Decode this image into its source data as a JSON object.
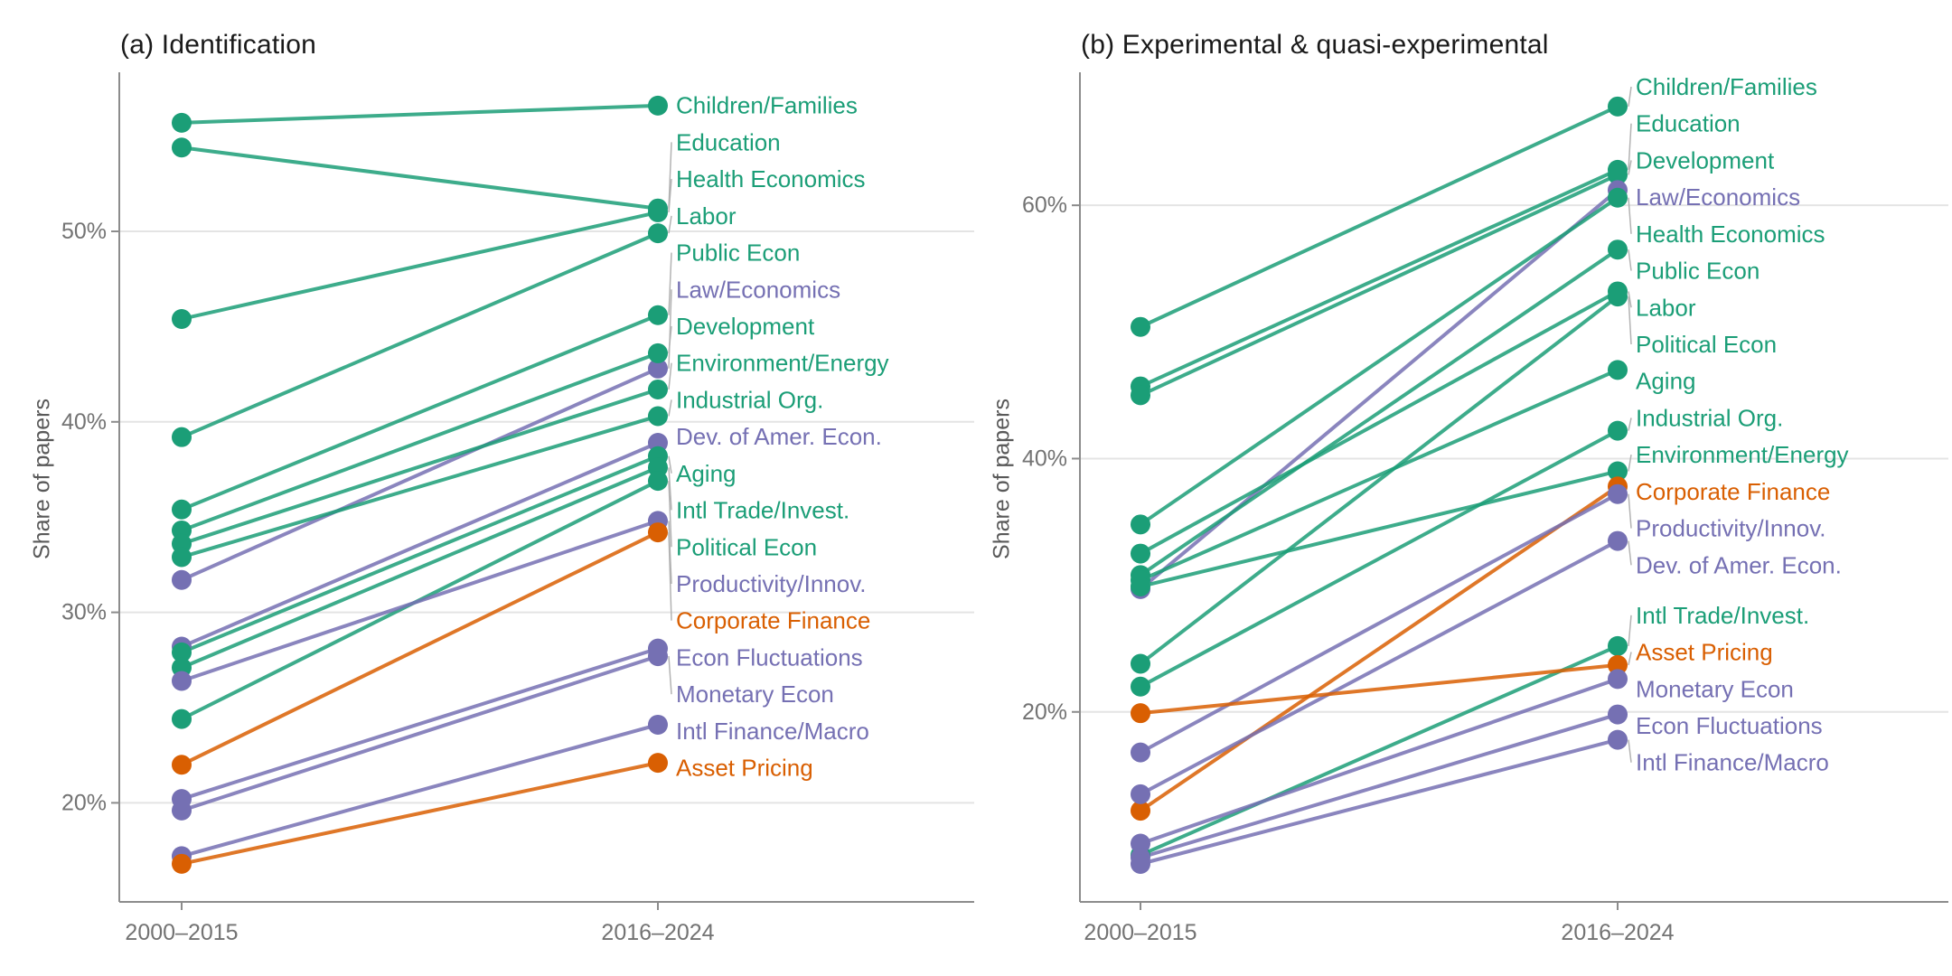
{
  "figure": {
    "background": "#ffffff",
    "y_axis_title": "Share of papers",
    "colors": {
      "applied_green": "#1b9e77",
      "finance_orange": "#d95f02",
      "macro_purple": "#7570b3",
      "gridline": "#e4e4e4",
      "axis_line": "#8c8c8c",
      "tick_text": "#737373",
      "leader_line": "#b3b3b3",
      "title_text": "#1a1a1a"
    }
  },
  "chart_data": [
    {
      "type": "line",
      "subtype": "slope-chart",
      "title": "(a) Identification",
      "ylabel": "Share of papers",
      "x_categories": [
        "2000–2015",
        "2016–2024"
      ],
      "yticks": [
        20,
        30,
        40,
        50
      ],
      "ytick_labels": [
        "20%",
        "30%",
        "40%",
        "50%"
      ],
      "ylim": [
        14.8,
        58.35
      ],
      "grid": true,
      "legend_position": "right-labels",
      "series": [
        {
          "name": "Children/Families",
          "color": "#1b9e77",
          "values": [
            55.7,
            56.6
          ]
        },
        {
          "name": "Education",
          "color": "#1b9e77",
          "values": [
            54.4,
            51.2
          ]
        },
        {
          "name": "Health Economics",
          "color": "#1b9e77",
          "values": [
            45.4,
            51.0
          ]
        },
        {
          "name": "Labor",
          "color": "#1b9e77",
          "values": [
            39.2,
            49.9
          ]
        },
        {
          "name": "Public Econ",
          "color": "#1b9e77",
          "values": [
            35.4,
            45.6
          ]
        },
        {
          "name": "Law/Economics",
          "color": "#7570b3",
          "values": [
            31.7,
            42.8
          ]
        },
        {
          "name": "Development",
          "color": "#1b9e77",
          "values": [
            34.3,
            43.6
          ]
        },
        {
          "name": "Environment/Energy",
          "color": "#1b9e77",
          "values": [
            33.6,
            41.7
          ]
        },
        {
          "name": "Industrial Org.",
          "color": "#1b9e77",
          "values": [
            32.9,
            40.3
          ]
        },
        {
          "name": "Dev. of Amer. Econ.",
          "color": "#7570b3",
          "values": [
            28.2,
            38.9
          ]
        },
        {
          "name": "Aging",
          "color": "#1b9e77",
          "values": [
            27.9,
            38.2
          ]
        },
        {
          "name": "Intl Trade/Invest.",
          "color": "#1b9e77",
          "values": [
            27.1,
            37.6
          ]
        },
        {
          "name": "Political Econ",
          "color": "#1b9e77",
          "values": [
            24.4,
            36.9
          ]
        },
        {
          "name": "Productivity/Innov.",
          "color": "#7570b3",
          "values": [
            26.4,
            34.8
          ]
        },
        {
          "name": "Corporate Finance",
          "color": "#d95f02",
          "values": [
            22.0,
            34.2
          ]
        },
        {
          "name": "Econ Fluctuations",
          "color": "#7570b3",
          "values": [
            20.2,
            28.1
          ]
        },
        {
          "name": "Monetary Econ",
          "color": "#7570b3",
          "values": [
            19.6,
            27.7
          ]
        },
        {
          "name": "Intl Finance/Macro",
          "color": "#7570b3",
          "values": [
            17.2,
            24.1
          ]
        },
        {
          "name": "Asset Pricing",
          "color": "#d95f02",
          "values": [
            16.8,
            22.1
          ]
        }
      ]
    },
    {
      "type": "line",
      "subtype": "slope-chart",
      "title": "(b) Experimental & quasi-experimental",
      "ylabel": "Share of papers",
      "x_categories": [
        "2000–2015",
        "2016–2024"
      ],
      "yticks": [
        20,
        40,
        60
      ],
      "ytick_labels": [
        "20%",
        "40%",
        "60%"
      ],
      "ylim": [
        5.0,
        70.5
      ],
      "grid": true,
      "legend_position": "right-labels",
      "series": [
        {
          "name": "Children/Families",
          "color": "#1b9e77",
          "values": [
            50.4,
            67.8
          ]
        },
        {
          "name": "Education",
          "color": "#1b9e77",
          "values": [
            45.7,
            62.8
          ]
        },
        {
          "name": "Development",
          "color": "#1b9e77",
          "values": [
            45.0,
            62.4
          ]
        },
        {
          "name": "Law/Economics",
          "color": "#7570b3",
          "values": [
            29.7,
            61.2
          ]
        },
        {
          "name": "Health Economics",
          "color": "#1b9e77",
          "values": [
            34.8,
            60.6
          ]
        },
        {
          "name": "Public Econ",
          "color": "#1b9e77",
          "values": [
            30.8,
            56.5
          ]
        },
        {
          "name": "Labor",
          "color": "#1b9e77",
          "values": [
            32.5,
            53.2
          ]
        },
        {
          "name": "Political Econ",
          "color": "#1b9e77",
          "values": [
            23.8,
            52.8
          ]
        },
        {
          "name": "Aging",
          "color": "#1b9e77",
          "values": [
            30.4,
            47.0
          ]
        },
        {
          "name": "Industrial Org.",
          "color": "#1b9e77",
          "values": [
            22.0,
            42.2
          ]
        },
        {
          "name": "Environment/Energy",
          "color": "#1b9e77",
          "values": [
            29.9,
            39.0
          ]
        },
        {
          "name": "Corporate Finance",
          "color": "#d95f02",
          "values": [
            12.2,
            37.8
          ]
        },
        {
          "name": "Productivity/Innov.",
          "color": "#7570b3",
          "values": [
            16.8,
            37.2
          ]
        },
        {
          "name": "Dev. of Amer. Econ.",
          "color": "#7570b3",
          "values": [
            13.5,
            33.5
          ]
        },
        {
          "name": "Intl Trade/Invest.",
          "color": "#1b9e77",
          "values": [
            8.7,
            25.2
          ]
        },
        {
          "name": "Asset Pricing",
          "color": "#d95f02",
          "values": [
            19.9,
            23.7
          ]
        },
        {
          "name": "Monetary Econ",
          "color": "#7570b3",
          "values": [
            9.6,
            22.6
          ]
        },
        {
          "name": "Econ Fluctuations",
          "color": "#7570b3",
          "values": [
            8.5,
            19.8
          ]
        },
        {
          "name": "Intl Finance/Macro",
          "color": "#7570b3",
          "values": [
            8.0,
            17.8
          ]
        }
      ]
    }
  ]
}
